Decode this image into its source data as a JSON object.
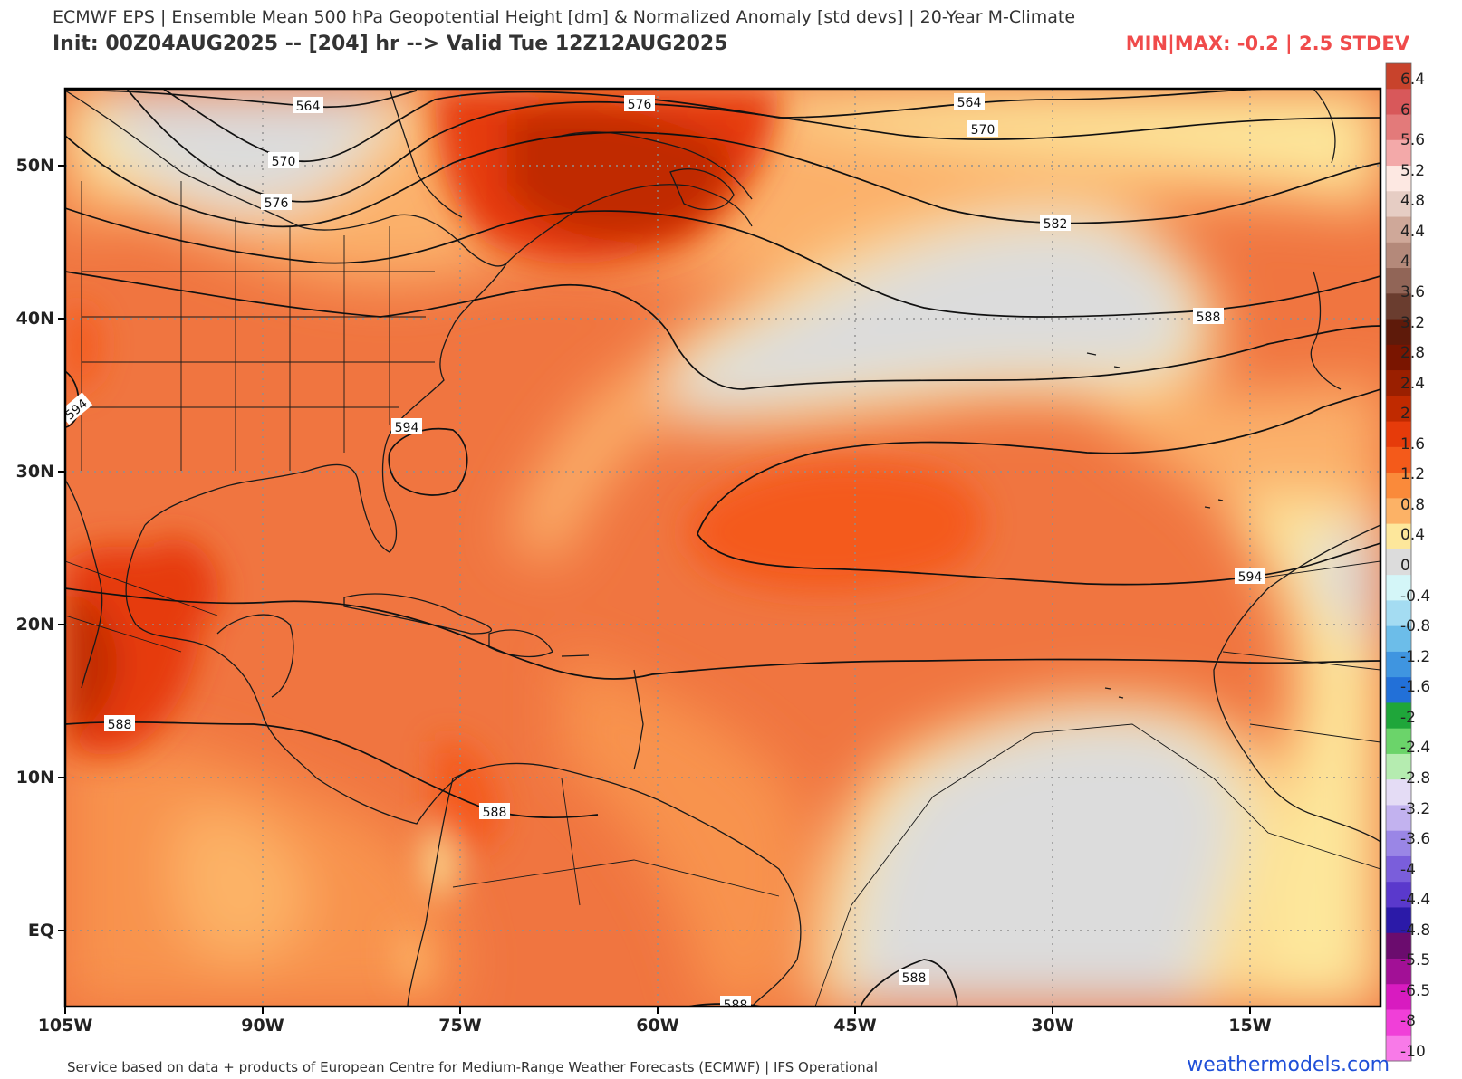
{
  "header": {
    "title": "ECMWF EPS | Ensemble Mean 500 hPa Geopotential Height [dm] & Normalized Anomaly [std devs] | 20-Year M-Climate",
    "init": "Init: 00Z04AUG2025 -- [204] hr --> Valid Tue 12Z12AUG2025",
    "minmax": "MIN|MAX: -0.2 | 2.5 STDEV"
  },
  "axes": {
    "lat_labels": [
      "50N",
      "40N",
      "30N",
      "20N",
      "10N",
      "EQ"
    ],
    "lon_labels": [
      "105W",
      "90W",
      "75W",
      "60W",
      "45W",
      "30W",
      "15W"
    ]
  },
  "contour_labels": [
    "564",
    "570",
    "576",
    "576",
    "564",
    "570",
    "582",
    "588",
    "594",
    "594",
    "594",
    "588",
    "588",
    "588",
    "588"
  ],
  "colorbar": {
    "ticks": [
      "6.4",
      "6",
      "5.6",
      "5.2",
      "4.8",
      "4.4",
      "4",
      "3.6",
      "3.2",
      "2.8",
      "2.4",
      "2",
      "1.6",
      "1.2",
      "0.8",
      "0.4",
      "0",
      "-0.4",
      "-0.8",
      "-1.2",
      "-1.6",
      "-2",
      "-2.4",
      "-2.8",
      "-3.2",
      "-3.6",
      "-4",
      "-4.4",
      "-4.8",
      "-5.5",
      "-6.5",
      "-8",
      "-10"
    ],
    "colors": [
      "#c8432c",
      "#d8585a",
      "#e37a7a",
      "#f3a9a9",
      "#fde8e2",
      "#e6cdc4",
      "#cfa899",
      "#b4897a",
      "#916557",
      "#6a3d2f",
      "#5e1a0a",
      "#7a1500",
      "#9a1f00",
      "#c02a00",
      "#e63b0a",
      "#f45a1a",
      "#fa8a3a",
      "#fcb266",
      "#fde79b",
      "#dcdcdc",
      "#d4f6f8",
      "#a4dcf2",
      "#6cbde9",
      "#3f95e0",
      "#2270d8",
      "#1fa63a",
      "#6bd46a",
      "#b5ecb0",
      "#e4dcf5",
      "#c2b2ef",
      "#9a86e6",
      "#7a5edb",
      "#5a39cc",
      "#2b1aa8",
      "#6b0c6e",
      "#a21096",
      "#d81bc0",
      "#f03fd8",
      "#f87ae8"
    ]
  },
  "footer": {
    "source": "Service based on data + products of European Centre for Medium-Range Weather Forecasts (ECMWF) | IFS Operational",
    "brand": "weathermodels.com"
  }
}
